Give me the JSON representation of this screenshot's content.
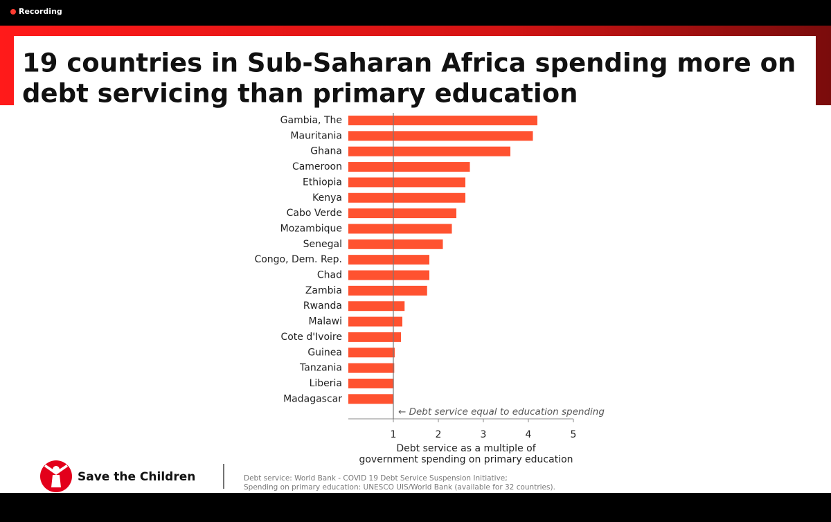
{
  "recording": "Recording",
  "slide": {
    "title_lines": [
      "19 countries in Sub-Saharan Africa spending more on",
      "debt servicing than primary education"
    ],
    "brand": "Save the Children",
    "source_lines": [
      "Debt service: World Bank - COVID 19 Debt Service Suspension Initiative;",
      "Spending on primary education: UNESCO UIS/World Bank (available for 32 countries)."
    ]
  },
  "chart_data": {
    "type": "hbar",
    "categories": [
      "Gambia, The",
      "Mauritania",
      "Ghana",
      "Cameroon",
      "Ethiopia",
      "Kenya",
      "Cabo Verde",
      "Mozambique",
      "Senegal",
      "Congo, Dem. Rep.",
      "Chad",
      "Zambia",
      "Rwanda",
      "Malawi",
      "Cote d'Ivoire",
      "Guinea",
      "Tanzania",
      "Liberia",
      "Madagascar"
    ],
    "values": [
      4.2,
      4.1,
      3.6,
      2.7,
      2.6,
      2.6,
      2.4,
      2.3,
      2.1,
      1.8,
      1.8,
      1.75,
      1.25,
      1.2,
      1.17,
      1.03,
      1.02,
      1.01,
      1.0
    ],
    "color": "#ff5230",
    "xlim": [
      0,
      5
    ],
    "xticks": [
      1,
      2,
      3,
      4,
      5
    ],
    "xlabel_lines": [
      "Debt service as a multiple of",
      "government spending on primary education"
    ],
    "annotation": "← Debt service equal to education spending"
  }
}
